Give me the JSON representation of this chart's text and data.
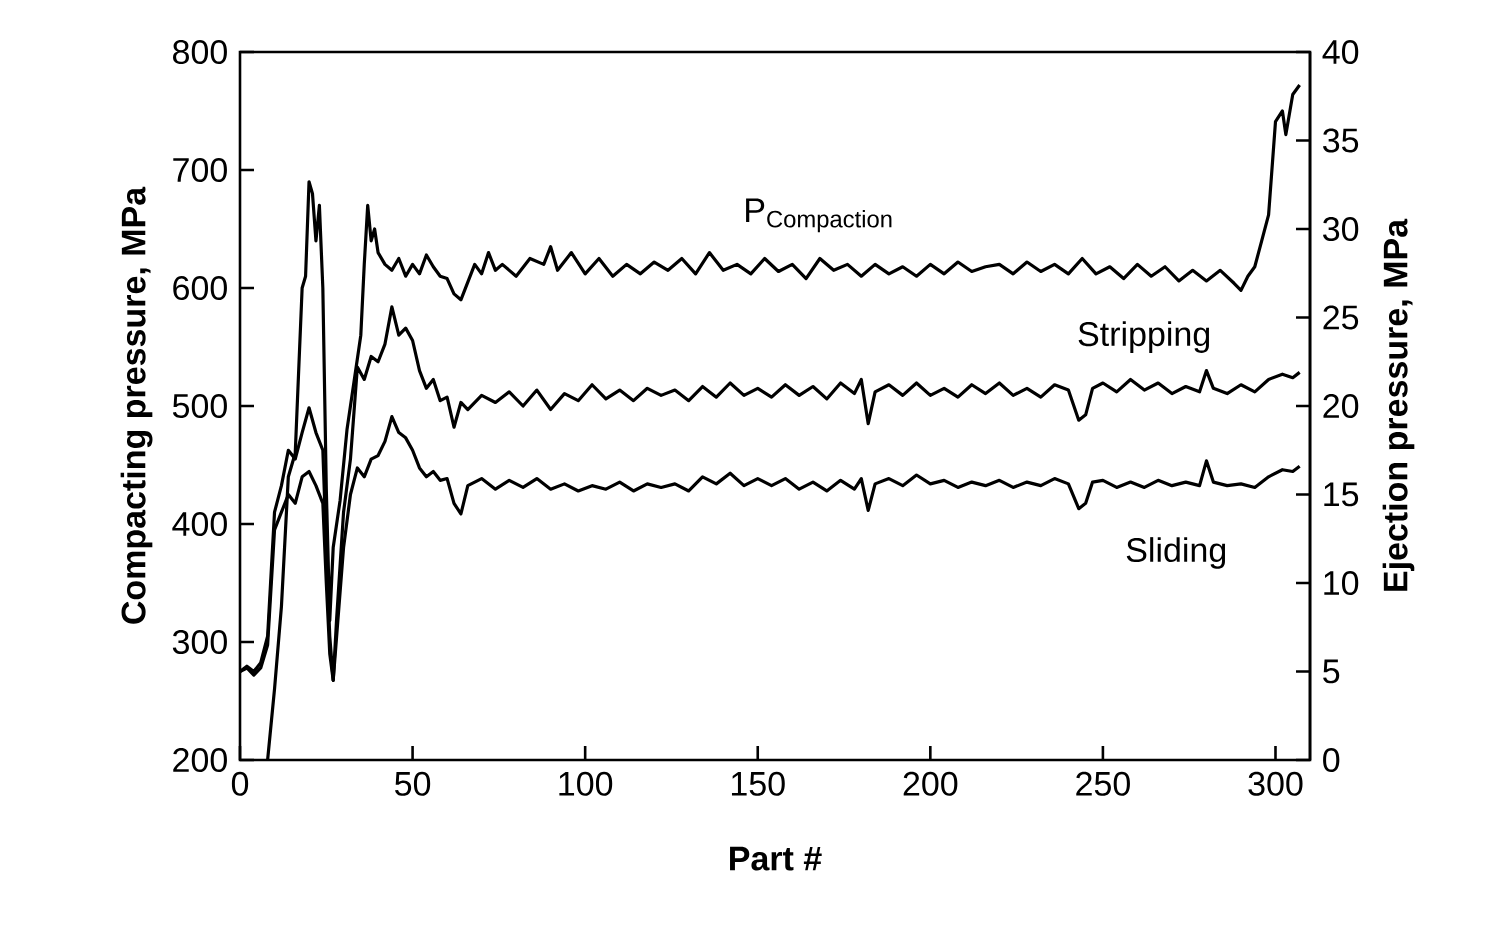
{
  "chart_data": {
    "type": "line",
    "xlabel": "Part #",
    "ylabel": "Compacting pressure, MPa",
    "y2label": "Ejection pressure, MPa",
    "xlim": [
      0,
      310
    ],
    "ylim": [
      200,
      800
    ],
    "y2lim": [
      0,
      40
    ],
    "xticks": [
      0,
      50,
      100,
      150,
      200,
      250,
      300
    ],
    "yticks": [
      200,
      300,
      400,
      500,
      600,
      700,
      800
    ],
    "y2ticks": [
      0,
      5,
      10,
      15,
      20,
      25,
      30,
      35,
      40
    ],
    "series": [
      {
        "name": "\\mathrm{P}_{\\mathrm{Compaction}}",
        "color": "#000000",
        "x": [
          8,
          10,
          12,
          14,
          16,
          18,
          19,
          20,
          21,
          22,
          23,
          24,
          25,
          26,
          27,
          29,
          31,
          33,
          35,
          36,
          37,
          38,
          39,
          40,
          42,
          44,
          46,
          48,
          50,
          52,
          54,
          56,
          58,
          60,
          62,
          64,
          66,
          68,
          70,
          72,
          74,
          76,
          80,
          84,
          88,
          90,
          92,
          96,
          100,
          104,
          108,
          112,
          116,
          120,
          124,
          128,
          132,
          136,
          140,
          144,
          148,
          152,
          156,
          160,
          164,
          168,
          172,
          176,
          180,
          184,
          188,
          192,
          196,
          200,
          204,
          208,
          212,
          216,
          220,
          224,
          228,
          232,
          236,
          240,
          244,
          248,
          252,
          256,
          260,
          264,
          268,
          272,
          276,
          280,
          284,
          288,
          290,
          292,
          294,
          296,
          298,
          300,
          302,
          303,
          305,
          307
        ],
        "values": [
          200,
          260,
          330,
          440,
          460,
          600,
          610,
          690,
          680,
          640,
          670,
          600,
          430,
          318,
          380,
          420,
          480,
          520,
          560,
          620,
          670,
          640,
          650,
          630,
          620,
          615,
          625,
          610,
          620,
          612,
          628,
          618,
          610,
          608,
          595,
          590,
          605,
          620,
          612,
          630,
          615,
          620,
          610,
          625,
          620,
          635,
          615,
          630,
          612,
          625,
          610,
          620,
          612,
          622,
          615,
          625,
          612,
          630,
          615,
          620,
          612,
          625,
          614,
          620,
          608,
          625,
          615,
          620,
          610,
          620,
          612,
          618,
          610,
          620,
          612,
          622,
          614,
          618,
          620,
          612,
          622,
          614,
          620,
          612,
          625,
          612,
          618,
          608,
          620,
          610,
          618,
          606,
          615,
          606,
          615,
          604,
          598,
          610,
          618,
          640,
          662,
          741,
          750,
          730,
          764,
          772
        ]
      },
      {
        "name": "Stripping",
        "color": "#000000",
        "axis": "y2",
        "x": [
          0,
          2,
          4,
          6,
          8,
          10,
          12,
          14,
          16,
          18,
          20,
          22,
          24,
          25,
          26,
          27,
          28,
          30,
          32,
          34,
          36,
          38,
          40,
          42,
          44,
          46,
          48,
          50,
          52,
          54,
          56,
          58,
          60,
          62,
          64,
          66,
          70,
          74,
          78,
          82,
          86,
          90,
          94,
          98,
          102,
          106,
          110,
          114,
          118,
          122,
          126,
          130,
          134,
          138,
          142,
          146,
          150,
          154,
          158,
          162,
          166,
          170,
          174,
          178,
          180,
          182,
          184,
          188,
          192,
          196,
          200,
          204,
          208,
          212,
          216,
          220,
          224,
          228,
          232,
          236,
          240,
          243,
          245,
          247,
          250,
          254,
          258,
          262,
          266,
          270,
          274,
          278,
          280,
          282,
          286,
          290,
          294,
          298,
          302,
          305,
          307
        ],
        "values": [
          5.0,
          5.3,
          5.0,
          5.5,
          7,
          14,
          15.5,
          17.5,
          17,
          18.5,
          19.9,
          18.5,
          17.5,
          12,
          7,
          4.5,
          8,
          14,
          17,
          22.2,
          21.5,
          22.8,
          22.5,
          23.5,
          25.6,
          24,
          24.4,
          23.7,
          22,
          21,
          21.5,
          20.3,
          20.5,
          18.8,
          20.2,
          19.8,
          20.6,
          20.2,
          20.8,
          20.0,
          20.9,
          19.8,
          20.7,
          20.3,
          21.2,
          20.4,
          20.9,
          20.3,
          21.0,
          20.6,
          20.9,
          20.3,
          21.1,
          20.5,
          21.3,
          20.6,
          21.0,
          20.5,
          21.2,
          20.6,
          21.1,
          20.4,
          21.3,
          20.7,
          21.5,
          19.0,
          20.8,
          21.2,
          20.6,
          21.3,
          20.6,
          21.0,
          20.5,
          21.2,
          20.7,
          21.3,
          20.6,
          21.0,
          20.5,
          21.2,
          20.9,
          19.2,
          19.5,
          21.0,
          21.3,
          20.8,
          21.5,
          20.9,
          21.3,
          20.7,
          21.1,
          20.8,
          22.0,
          21.0,
          20.7,
          21.2,
          20.8,
          21.5,
          21.8,
          21.6,
          21.9
        ]
      },
      {
        "name": "Sliding",
        "color": "#000000",
        "axis": "y2",
        "x": [
          0,
          2,
          4,
          6,
          8,
          10,
          12,
          14,
          16,
          18,
          20,
          22,
          24,
          25,
          26,
          27,
          28,
          30,
          32,
          34,
          36,
          38,
          40,
          42,
          44,
          46,
          48,
          50,
          52,
          54,
          56,
          58,
          60,
          62,
          64,
          66,
          70,
          74,
          78,
          82,
          86,
          90,
          94,
          98,
          102,
          106,
          110,
          114,
          118,
          122,
          126,
          130,
          134,
          138,
          142,
          146,
          150,
          154,
          158,
          162,
          166,
          170,
          174,
          178,
          180,
          182,
          184,
          188,
          192,
          196,
          200,
          204,
          208,
          212,
          216,
          220,
          224,
          228,
          232,
          236,
          240,
          243,
          245,
          247,
          250,
          254,
          258,
          262,
          266,
          270,
          274,
          278,
          280,
          282,
          286,
          290,
          294,
          298,
          302,
          305,
          307
        ],
        "values": [
          5.0,
          5.2,
          4.8,
          5.2,
          6.5,
          13,
          14,
          15,
          14.5,
          16,
          16.3,
          15.5,
          14.5,
          10,
          6,
          4.5,
          7,
          12,
          15,
          16.5,
          16,
          17,
          17.2,
          18.0,
          19.4,
          18.5,
          18.2,
          17.5,
          16.5,
          16.0,
          16.3,
          15.8,
          15.9,
          14.5,
          13.9,
          15.5,
          15.9,
          15.3,
          15.8,
          15.4,
          15.9,
          15.3,
          15.6,
          15.2,
          15.5,
          15.3,
          15.7,
          15.2,
          15.6,
          15.4,
          15.6,
          15.2,
          16.0,
          15.6,
          16.2,
          15.5,
          15.9,
          15.5,
          15.9,
          15.3,
          15.7,
          15.2,
          15.8,
          15.3,
          15.9,
          14.1,
          15.6,
          15.9,
          15.5,
          16.1,
          15.6,
          15.8,
          15.4,
          15.7,
          15.5,
          15.8,
          15.4,
          15.7,
          15.5,
          15.9,
          15.6,
          14.2,
          14.5,
          15.7,
          15.8,
          15.4,
          15.7,
          15.4,
          15.8,
          15.5,
          15.7,
          15.5,
          16.9,
          15.7,
          15.5,
          15.6,
          15.4,
          16.0,
          16.4,
          16.3,
          16.6
        ]
      }
    ]
  }
}
